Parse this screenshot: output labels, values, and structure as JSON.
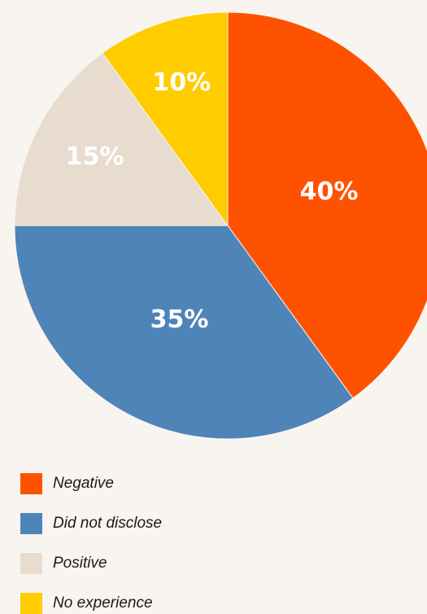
{
  "chart_data": {
    "type": "pie",
    "categories": [
      "Negative",
      "Did not disclose",
      "Positive",
      "No experience"
    ],
    "values": [
      40,
      35,
      15,
      10
    ],
    "value_labels": [
      "40%",
      "35%",
      "15%",
      "10%"
    ],
    "colors": [
      "#ff5200",
      "#4f84b8",
      "#e8dccf",
      "#ffcc00"
    ]
  }
}
